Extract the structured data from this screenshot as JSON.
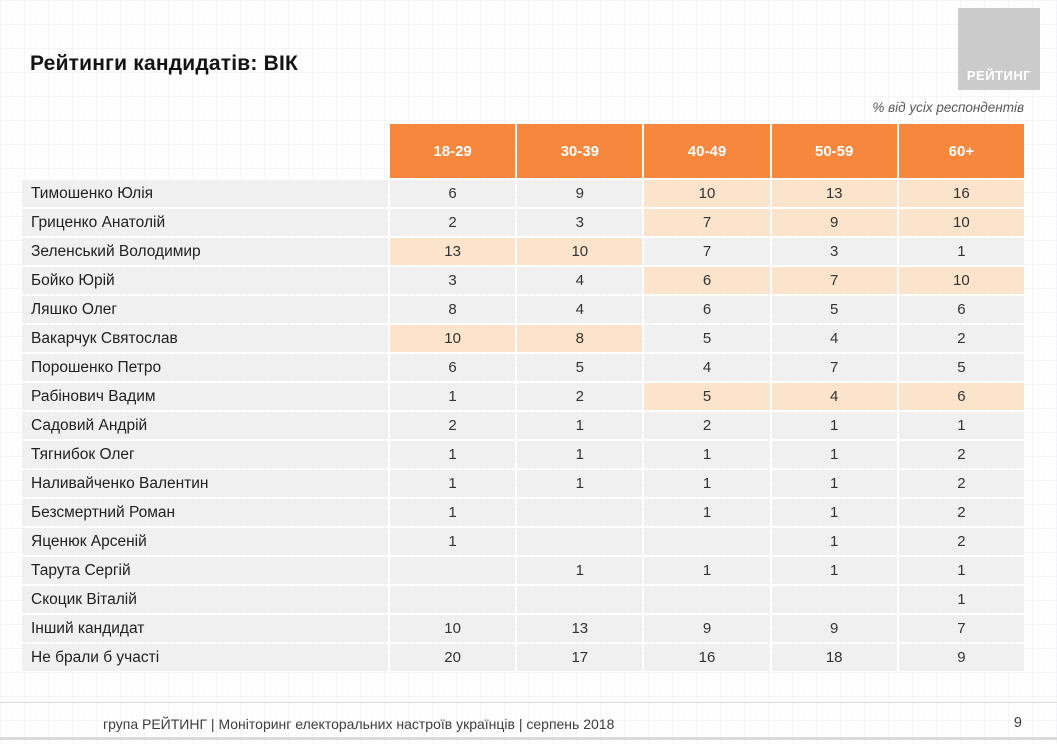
{
  "page": {
    "logo_text": "РЕЙТИНГ",
    "footer": "група РЕЙТИНГ |  Моніторинг електоральних настроїв українців | серпень  2018",
    "page_number": "9"
  },
  "colors": {
    "header_orange": "#f6873c",
    "highlight_peach": "#fbe4cb",
    "cell_gray": "#f0f0f1",
    "logo_gray": "#cbcbcb"
  },
  "chart_data": {
    "type": "table",
    "title": "Рейтинги кандидатів: ВІК",
    "unit_note": "% від усіх респондентів",
    "columns": [
      "18-29",
      "30-39",
      "40-49",
      "50-59",
      "60+"
    ],
    "rows": [
      {
        "name": "Тимошенко Юлія",
        "values": [
          6,
          9,
          10,
          13,
          16
        ],
        "hl": [
          0,
          0,
          1,
          1,
          1
        ]
      },
      {
        "name": "Гриценко Анатолій",
        "values": [
          2,
          3,
          7,
          9,
          10
        ],
        "hl": [
          0,
          0,
          1,
          1,
          1
        ]
      },
      {
        "name": "Зеленський Володимир",
        "values": [
          13,
          10,
          7,
          3,
          1
        ],
        "hl": [
          1,
          1,
          0,
          0,
          0
        ]
      },
      {
        "name": "Бойко Юрій",
        "values": [
          3,
          4,
          6,
          7,
          10
        ],
        "hl": [
          0,
          0,
          1,
          1,
          1
        ]
      },
      {
        "name": "Ляшко Олег",
        "values": [
          8,
          4,
          6,
          5,
          6
        ],
        "hl": [
          0,
          0,
          0,
          0,
          0
        ]
      },
      {
        "name": "Вакарчук Святослав",
        "values": [
          10,
          8,
          5,
          4,
          2
        ],
        "hl": [
          1,
          1,
          0,
          0,
          0
        ]
      },
      {
        "name": "Порошенко Петро",
        "values": [
          6,
          5,
          4,
          7,
          5
        ],
        "hl": [
          0,
          0,
          0,
          0,
          0
        ]
      },
      {
        "name": "Рабінович Вадим",
        "values": [
          1,
          2,
          5,
          4,
          6
        ],
        "hl": [
          0,
          0,
          1,
          1,
          1
        ]
      },
      {
        "name": "Садовий Андрій",
        "values": [
          2,
          1,
          2,
          1,
          1
        ],
        "hl": [
          0,
          0,
          0,
          0,
          0
        ]
      },
      {
        "name": "Тягнибок Олег",
        "values": [
          1,
          1,
          1,
          1,
          2
        ],
        "hl": [
          0,
          0,
          0,
          0,
          0
        ]
      },
      {
        "name": "Наливайченко Валентин",
        "values": [
          1,
          1,
          1,
          1,
          2
        ],
        "hl": [
          0,
          0,
          0,
          0,
          0
        ]
      },
      {
        "name": "Безсмертний Роман",
        "values": [
          1,
          null,
          1,
          1,
          2
        ],
        "hl": [
          0,
          0,
          0,
          0,
          0
        ]
      },
      {
        "name": "Яценюк Арсеній",
        "values": [
          1,
          null,
          null,
          1,
          2
        ],
        "hl": [
          0,
          0,
          0,
          0,
          0
        ]
      },
      {
        "name": "Тарута Сергій",
        "values": [
          null,
          1,
          1,
          1,
          1
        ],
        "hl": [
          0,
          0,
          0,
          0,
          0
        ]
      },
      {
        "name": "Скоцик Віталій",
        "values": [
          null,
          null,
          null,
          null,
          1
        ],
        "hl": [
          0,
          0,
          0,
          0,
          0
        ]
      },
      {
        "name": "Інший кандидат",
        "values": [
          10,
          13,
          9,
          9,
          7
        ],
        "hl": [
          0,
          0,
          0,
          0,
          0
        ]
      },
      {
        "name": "Не брали б участі",
        "values": [
          20,
          17,
          16,
          18,
          9
        ],
        "hl": [
          0,
          0,
          0,
          0,
          0
        ]
      }
    ]
  }
}
